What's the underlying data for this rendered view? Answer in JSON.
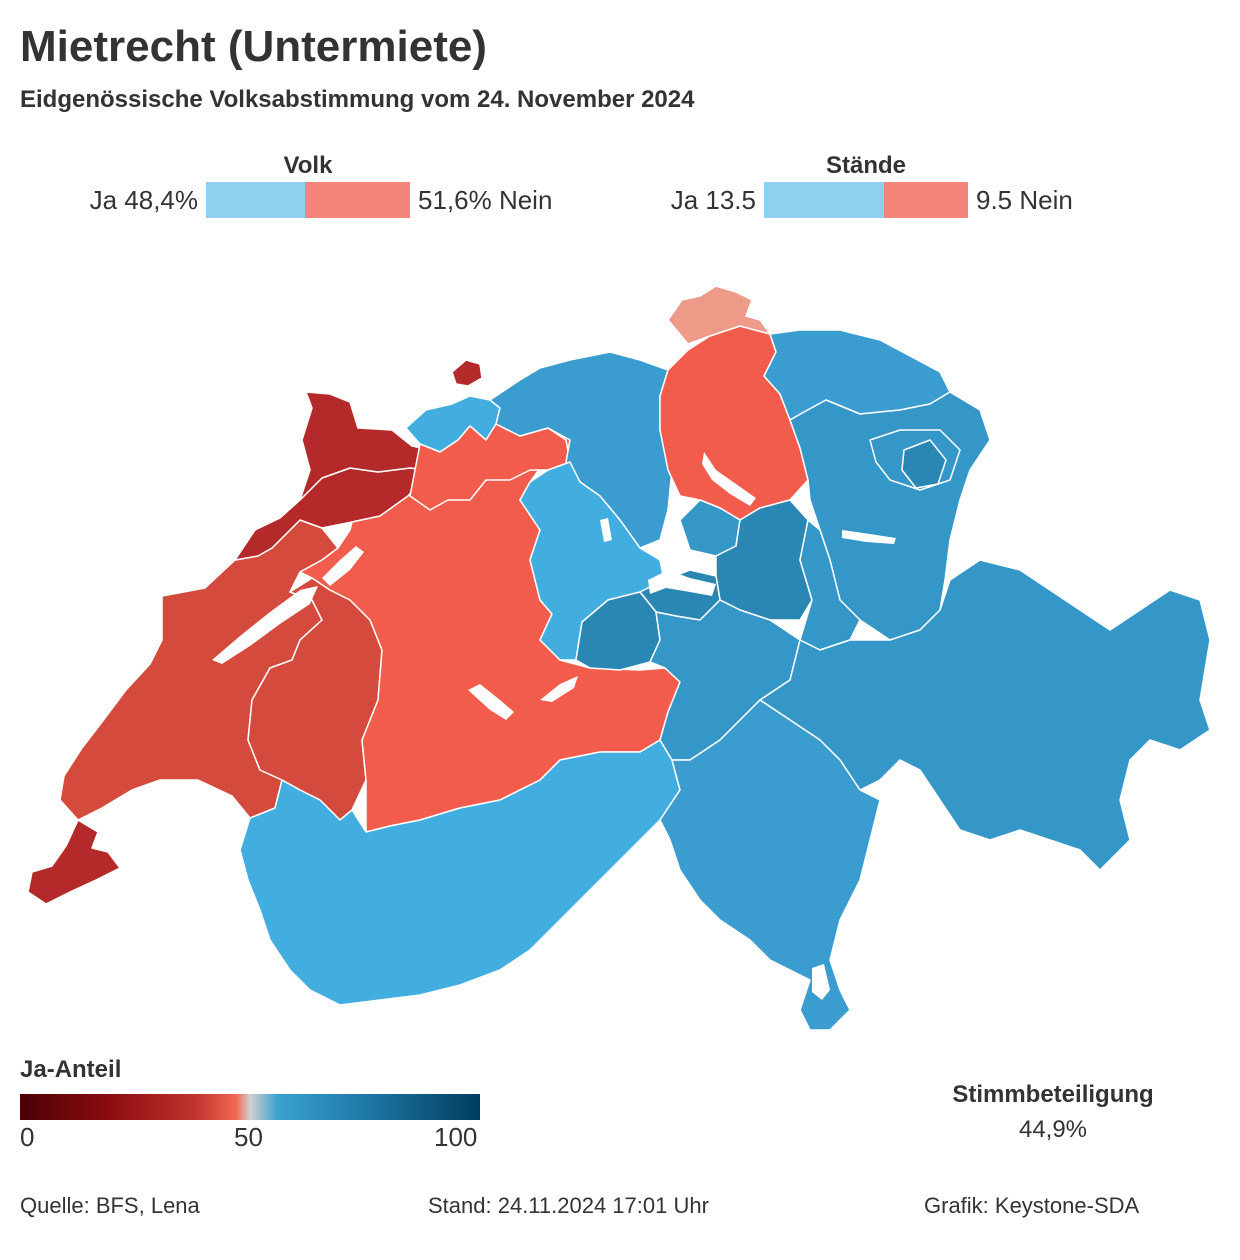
{
  "title": "Mietrecht (Untermiete)",
  "subtitle": "Eidgenössische Volksabstimmung vom 24. November 2024",
  "results": {
    "volk": {
      "heading": "Volk",
      "ja_label": "Ja 48,4%",
      "nein_label": "51,6% Nein",
      "ja_share": 0.484,
      "color_ja": "#8dd0ef",
      "color_nein": "#f4857a"
    },
    "staende": {
      "heading": "Stände",
      "ja_label": "Ja 13.5",
      "nein_label": "9.5 Nein",
      "ja_share": 0.587,
      "color_ja": "#8dd0ef",
      "color_nein": "#f4857a"
    }
  },
  "legend": {
    "title": "Ja-Anteil",
    "ticks": [
      "0",
      "50",
      "100"
    ]
  },
  "turnout": {
    "label": "Stimmbeteiligung",
    "value": "44,9%"
  },
  "footer": {
    "source": "Quelle: BFS, Lena",
    "stand": "Stand: 24.11.2024 17:01 Uhr",
    "credit": "Grafik: Keystone-SDA"
  },
  "map_colors": {
    "dark_red": "#b42a2a",
    "red": "#d44a3c",
    "salmon": "#f25c4c",
    "light_salmon": "#ee9a88",
    "light_blue": "#42aee0",
    "blue": "#3a9ccf",
    "mid_blue": "#3497c8",
    "dark_blue": "#2a86b3",
    "lake": "#ffffff"
  }
}
